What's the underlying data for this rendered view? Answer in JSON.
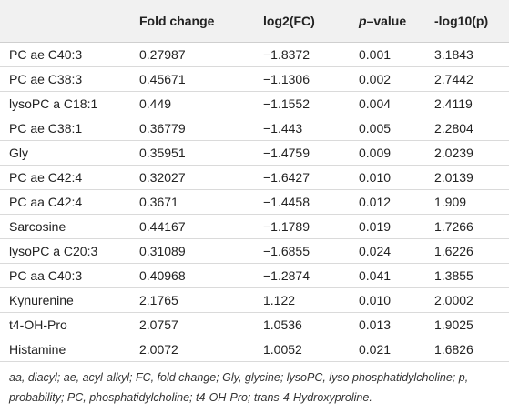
{
  "table": {
    "header": [
      "Fold change",
      "log2(FC)",
      [
        "p",
        "–value"
      ],
      "-log10(p)"
    ],
    "rows": [
      [
        "PC ae C40:3",
        "0.27987",
        "−1.8372",
        "0.001",
        "3.1843"
      ],
      [
        "PC ae C38:3",
        "0.45671",
        "−1.1306",
        "0.002",
        "2.7442"
      ],
      [
        "lysoPC a C18:1",
        "0.449",
        "−1.1552",
        "0.004",
        "2.4119"
      ],
      [
        "PC ae C38:1",
        "0.36779",
        "−1.443",
        "0.005",
        "2.2804"
      ],
      [
        "Gly",
        "0.35951",
        "−1.4759",
        "0.009",
        "2.0239"
      ],
      [
        "PC ae C42:4",
        "0.32027",
        "−1.6427",
        "0.010",
        "2.0139"
      ],
      [
        "PC aa C42:4",
        "0.3671",
        "−1.4458",
        "0.012",
        "1.909"
      ],
      [
        "Sarcosine",
        "0.44167",
        "−1.1789",
        "0.019",
        "1.7266"
      ],
      [
        "lysoPC a C20:3",
        "0.31089",
        "−1.6855",
        "0.024",
        "1.6226"
      ],
      [
        "PC aa C40:3",
        "0.40968",
        "−1.2874",
        "0.041",
        "1.3855"
      ],
      [
        "Kynurenine",
        "2.1765",
        "1.122",
        "0.010",
        "2.0002"
      ],
      [
        "t4-OH-Pro",
        "2.0757",
        "1.0536",
        "0.013",
        "1.9025"
      ],
      [
        "Histamine",
        "2.0072",
        "1.0052",
        "0.021",
        "1.6826"
      ]
    ],
    "footnote": "aa, diacyl; ae, acyl-alkyl; FC, fold change; Gly, glycine; lysoPC, lyso phosphatidylcholine; p, probability; PC, phosphatidylcholine; t4-OH-Pro; trans-4-Hydroxyproline."
  }
}
